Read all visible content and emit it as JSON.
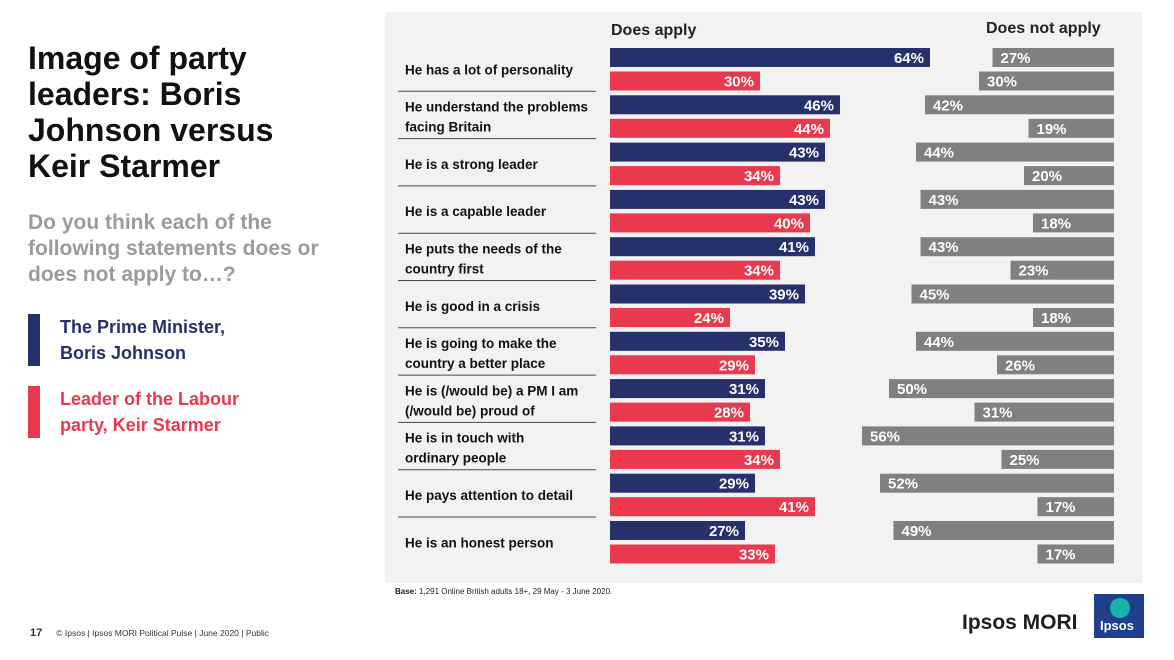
{
  "page": {
    "title": "Image of party leaders: Boris Johnson versus Keir Starmer",
    "question": "Do you think each of the following statements does or does not apply to…?",
    "legend": [
      {
        "label": "The Prime Minister,\nBoris Johnson",
        "color": "#26306b"
      },
      {
        "label": "Leader of the Labour\nparty, Keir Starmer",
        "color": "#e8394f"
      }
    ],
    "base_bold": "Base:",
    "base_text": " 1,291 Online British adults 18+, 29 May - 3 June 2020.",
    "footer_page": "17",
    "footer_text": "© Ipsos | Ipsos MORI Political Pulse | June 2020 | Public",
    "brand": "Ipsos MORI",
    "logo_text": "Ipsos"
  },
  "chart_data": {
    "type": "bar",
    "orientation": "horizontal",
    "does_apply_label": "Does apply",
    "does_not_apply_label": "Does not apply",
    "categories": [
      "He has a lot of personality",
      "He understand the problems facing Britain",
      "He is a strong leader",
      "He is a capable leader",
      "He puts the needs of the country first",
      "He is good in a crisis",
      "He is going to make the country a better place",
      "He is (/would be) a PM I am (/would be) proud of",
      "He is in touch with ordinary people",
      "He pays attention to detail",
      "He is an honest person"
    ],
    "series": [
      {
        "name": "The Prime Minister, Boris Johnson",
        "measure": "Does apply",
        "color": "#26306b",
        "values": [
          64,
          46,
          43,
          43,
          41,
          39,
          35,
          31,
          31,
          29,
          27
        ]
      },
      {
        "name": "Leader of the Labour party, Keir Starmer",
        "measure": "Does apply",
        "color": "#e8394f",
        "values": [
          30,
          44,
          34,
          40,
          34,
          24,
          29,
          28,
          34,
          41,
          33
        ]
      },
      {
        "name": "The Prime Minister, Boris Johnson",
        "measure": "Does not apply",
        "color": "#808080",
        "values": [
          27,
          42,
          44,
          43,
          43,
          45,
          44,
          50,
          56,
          52,
          49
        ]
      },
      {
        "name": "Leader of the Labour party, Keir Starmer",
        "measure": "Does not apply",
        "color": "#808080",
        "values": [
          30,
          19,
          20,
          18,
          23,
          18,
          26,
          31,
          25,
          17,
          17
        ]
      }
    ],
    "value_suffix": "%",
    "xlim": [
      0,
      100
    ]
  }
}
